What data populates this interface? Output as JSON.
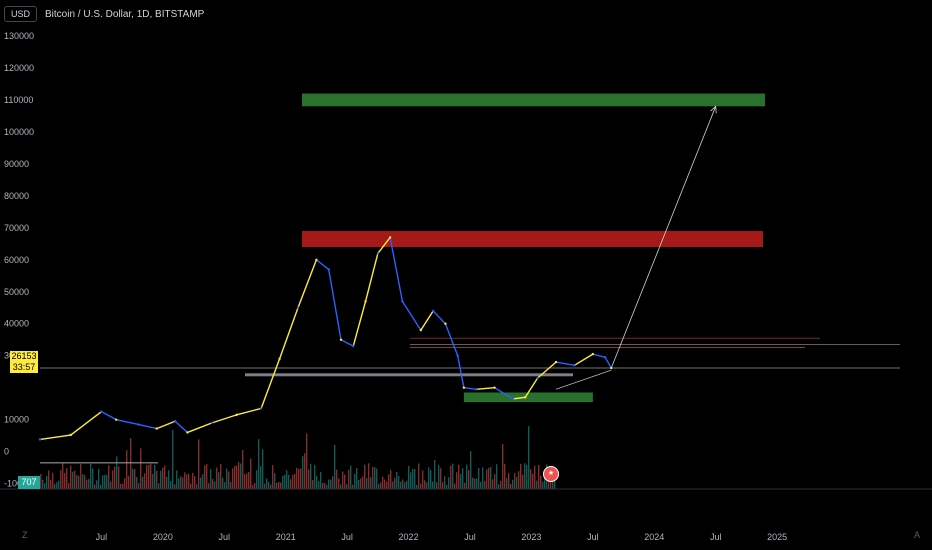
{
  "header": {
    "currency_button": "USD",
    "symbol_title": "Bitcoin / U.S. Dollar, 1D, BITSTAMP"
  },
  "price_badge": {
    "price": "26153",
    "timer": "33:57"
  },
  "volume_badge": "707",
  "corner_left": "Z",
  "corner_right": "A",
  "colors": {
    "background": "#000000",
    "candle_up": "#ffeb3b",
    "candle_down": "#2962ff",
    "zone_green": "#2e7d32",
    "zone_red": "#b71c1c",
    "vol_up": "#26a69a",
    "vol_down": "#ef5350"
  },
  "chart_data": {
    "type": "line",
    "title": "Bitcoin / U.S. Dollar, 1D, BITSTAMP",
    "y_axis": {
      "ticks": [
        130000,
        120000,
        110000,
        100000,
        90000,
        80000,
        70000,
        60000,
        50000,
        40000,
        30000,
        10000,
        0,
        -10000
      ],
      "tick_labels": [
        "130000",
        "120000",
        "110000",
        "100000",
        "90000",
        "80000",
        "70000",
        "60000",
        "50000",
        "40000",
        "30000",
        "10000",
        "0",
        "-10000"
      ],
      "range": [
        -12000,
        135000
      ]
    },
    "x_axis": {
      "tick_labels": [
        "Jul",
        "2020",
        "Jul",
        "2021",
        "Jul",
        "2022",
        "Jul",
        "2023",
        "Jul",
        "2024",
        "Jul",
        "2025"
      ],
      "tick_dates": [
        2019.5,
        2020.0,
        2020.5,
        2021.0,
        2021.5,
        2022.0,
        2022.5,
        2023.0,
        2023.5,
        2024.0,
        2024.5,
        2025.0
      ],
      "range": [
        2019.0,
        2026.0
      ]
    },
    "price_series": {
      "name": "BTCUSD",
      "x": [
        2019.0,
        2019.25,
        2019.5,
        2019.62,
        2019.8,
        2019.95,
        2020.1,
        2020.2,
        2020.4,
        2020.6,
        2020.8,
        2020.95,
        2021.1,
        2021.25,
        2021.35,
        2021.45,
        2021.55,
        2021.65,
        2021.75,
        2021.85,
        2021.95,
        2022.1,
        2022.2,
        2022.3,
        2022.4,
        2022.45,
        2022.55,
        2022.7,
        2022.85,
        2022.95,
        2023.05,
        2023.2,
        2023.35,
        2023.5,
        2023.6,
        2023.65
      ],
      "y": [
        3800,
        5200,
        12500,
        10000,
        8500,
        7200,
        9500,
        6000,
        9000,
        11500,
        13500,
        29000,
        45000,
        60000,
        57000,
        35000,
        33000,
        47000,
        62000,
        67000,
        47000,
        38000,
        44000,
        40000,
        30000,
        20000,
        19500,
        20000,
        16500,
        17000,
        23000,
        28000,
        27000,
        30500,
        29500,
        26153
      ]
    },
    "zones": [
      {
        "type": "target",
        "color": "green",
        "x": [
          2022.0,
          2026.0
        ],
        "y": [
          108000,
          112000
        ]
      },
      {
        "type": "resistance",
        "color": "red",
        "x": [
          2022.0,
          2026.0
        ],
        "y": [
          64000,
          69000
        ]
      },
      {
        "type": "support",
        "color": "green",
        "x": [
          2022.45,
          2023.5
        ],
        "y": [
          15500,
          18500
        ]
      }
    ],
    "lines": [
      {
        "type": "horizontal",
        "y": 26153
      },
      {
        "type": "horizontal",
        "y": 33500
      },
      {
        "type": "horizontal",
        "y": 35500
      },
      {
        "type": "horizontal",
        "y": 32500
      },
      {
        "type": "projection_arrow",
        "from": [
          2023.65,
          26153
        ],
        "to": [
          2024.5,
          108000
        ]
      }
    ],
    "grid": false,
    "legend": "none"
  }
}
